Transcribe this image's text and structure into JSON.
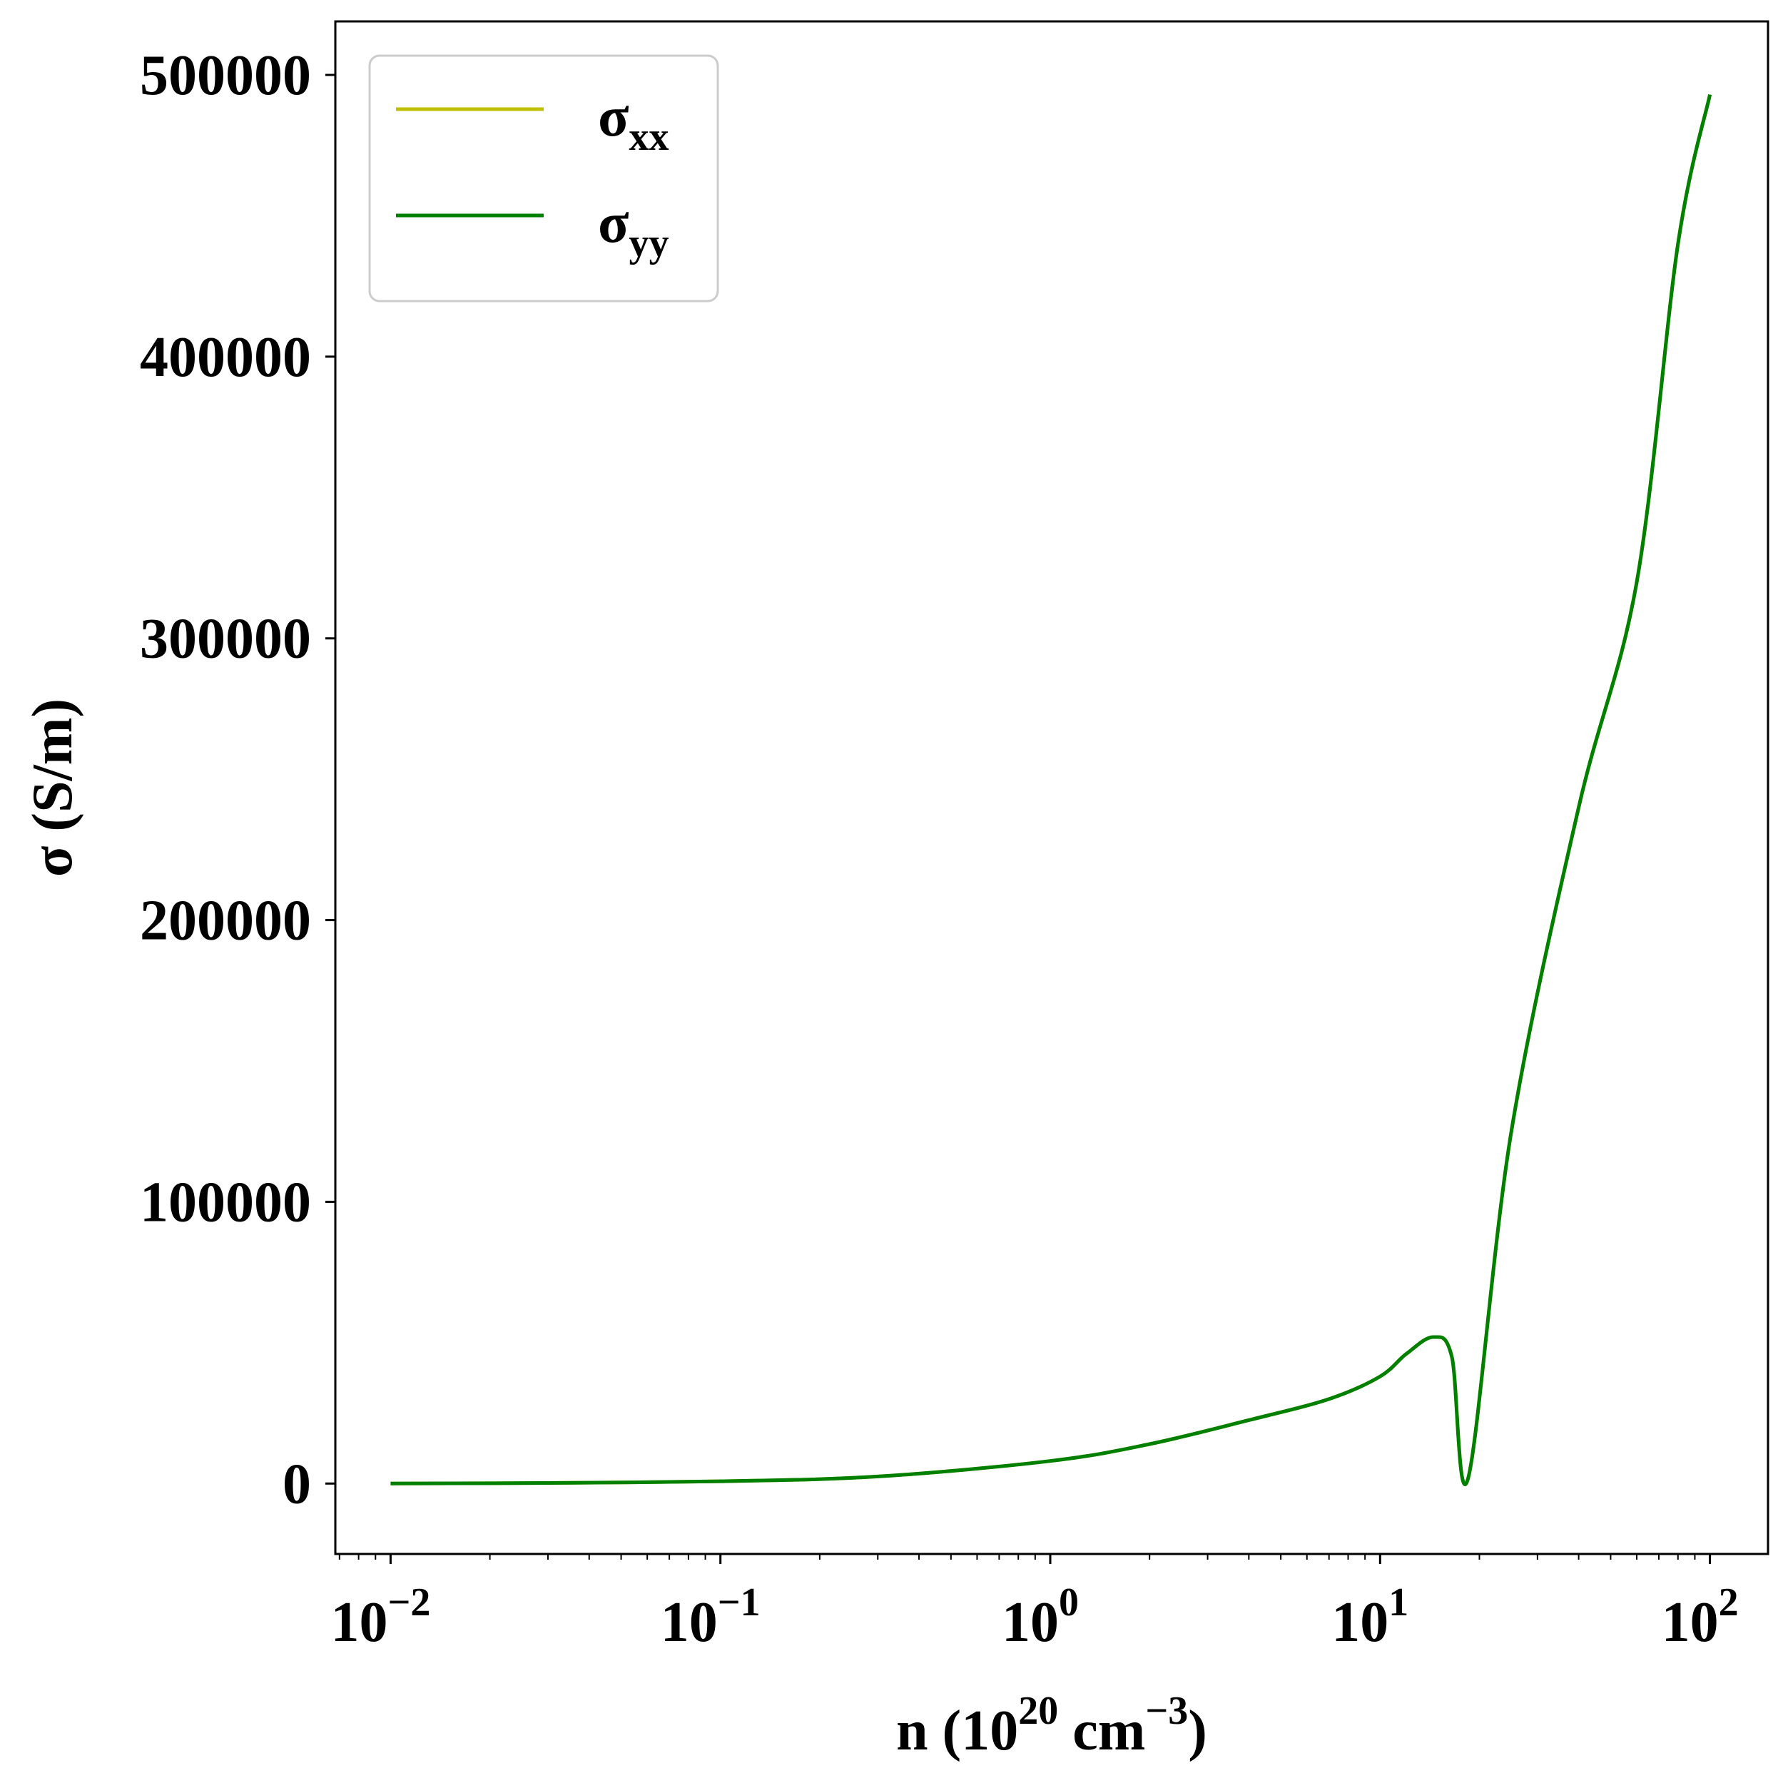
{
  "chart_data": {
    "type": "line",
    "title": "",
    "xlabel": "n (10",
    "xlabel_sup1": "20",
    "xlabel_mid": " cm",
    "xlabel_sup2": "−3",
    "xlabel_end": ")",
    "ylabel": "σ (S/m)",
    "xscale": "log",
    "xlim": [
      0.0068,
      150
    ],
    "ylim": [
      -25000,
      519000
    ],
    "grid": false,
    "legend_position": "top-left",
    "x_ticks": [
      {
        "value": 0.01,
        "base": "10",
        "exp": "−2"
      },
      {
        "value": 0.1,
        "base": "10",
        "exp": "−1"
      },
      {
        "value": 1,
        "base": "10",
        "exp": "0"
      },
      {
        "value": 10,
        "base": "10",
        "exp": "1"
      },
      {
        "value": 100,
        "base": "10",
        "exp": "2"
      }
    ],
    "y_ticks": [
      {
        "value": 0,
        "label": "0"
      },
      {
        "value": 100000,
        "label": "100000"
      },
      {
        "value": 200000,
        "label": "200000"
      },
      {
        "value": 300000,
        "label": "300000"
      },
      {
        "value": 400000,
        "label": "400000"
      },
      {
        "value": 500000,
        "label": "500000"
      }
    ],
    "series": [
      {
        "name": "σ",
        "name_sub": "xx",
        "color": "#bfbf00",
        "x": [
          0.01,
          0.03,
          0.1,
          0.3,
          1,
          2,
          4,
          7,
          10,
          12,
          14.5,
          16.5,
          18.5,
          25,
          40,
          60,
          80,
          100
        ],
        "y": [
          0,
          200,
          800,
          2500,
          8000,
          14000,
          22500,
          30000,
          38000,
          46000,
          52000,
          45000,
          2000,
          125000,
          240000,
          320000,
          440000,
          493000
        ]
      },
      {
        "name": "σ",
        "name_sub": "yy",
        "color": "#008000",
        "x": [
          0.01,
          0.03,
          0.1,
          0.3,
          1,
          2,
          4,
          7,
          10,
          12,
          14.5,
          16.5,
          18.5,
          25,
          40,
          60,
          80,
          100
        ],
        "y": [
          0,
          200,
          800,
          2500,
          8000,
          14000,
          22500,
          30000,
          38000,
          46000,
          52000,
          45000,
          2000,
          125000,
          240000,
          320000,
          440000,
          493000
        ]
      }
    ]
  }
}
